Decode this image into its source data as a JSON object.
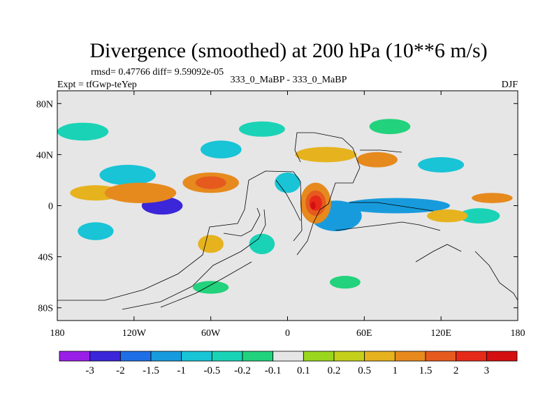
{
  "chart_data": {
    "type": "heatmap",
    "title": "Divergence (smoothed) at 200 hPa (10**6 m/s)",
    "rmsd_label": "rmsd= 0.47766 diff= 9.59092e-05",
    "case_label": "333_0_MaBP - 333_0_MaBP",
    "expt_label": "Expt = tfGwp-teYep",
    "season": "DJF",
    "xlim": [
      -180,
      180
    ],
    "ylim": [
      -90,
      90
    ],
    "x_ticks": [
      {
        "value": -180,
        "label": "180"
      },
      {
        "value": -120,
        "label": "120W"
      },
      {
        "value": -60,
        "label": "60W"
      },
      {
        "value": 0,
        "label": "0"
      },
      {
        "value": 60,
        "label": "60E"
      },
      {
        "value": 120,
        "label": "120E"
      },
      {
        "value": 180,
        "label": "180"
      }
    ],
    "y_ticks": [
      {
        "value": 80,
        "label": "80N"
      },
      {
        "value": 40,
        "label": "40N"
      },
      {
        "value": 0,
        "label": "0"
      },
      {
        "value": -40,
        "label": "40S"
      },
      {
        "value": -80,
        "label": "80S"
      }
    ],
    "contour_levels": [
      "-3",
      "-2",
      "-1.5",
      "-1",
      "-0.5",
      "-0.2",
      "-0.1",
      "0.1",
      "0.2",
      "0.5",
      "1",
      "1.5",
      "2",
      "3"
    ],
    "colorbar_colors": [
      "#9a1fe6",
      "#3b26d9",
      "#1e6fe6",
      "#189bdc",
      "#18c4d6",
      "#1ad3b6",
      "#22d27c",
      "#e6e6e6",
      "#9ad61e",
      "#c4cf1a",
      "#e6b21e",
      "#e68a1e",
      "#e65a1e",
      "#e62a1a",
      "#d40f12"
    ],
    "features": [
      {
        "label": "-2",
        "lon": -98,
        "lat": 0,
        "rx": 16,
        "ry": 7
      },
      {
        "label": "-2",
        "lon": -100,
        "lat": 2,
        "rx": 6,
        "ry": 3
      },
      {
        "label": "-1.5",
        "lon": 38,
        "lat": -12,
        "rx": 10,
        "ry": 6
      },
      {
        "label": "-1.5",
        "lon": 78,
        "lat": 0,
        "rx": 18,
        "ry": 4
      },
      {
        "label": "-1",
        "lon": 85,
        "lat": 0,
        "rx": 42,
        "ry": 6
      },
      {
        "label": "-1",
        "lon": 38,
        "lat": -8,
        "rx": 20,
        "ry": 12
      },
      {
        "label": "-0.5",
        "lon": -125,
        "lat": 24,
        "rx": 22,
        "ry": 8
      },
      {
        "label": "-0.5",
        "lon": -150,
        "lat": -20,
        "rx": 14,
        "ry": 7
      },
      {
        "label": "-0.5",
        "lon": -52,
        "lat": 44,
        "rx": 16,
        "ry": 7
      },
      {
        "label": "-0.5",
        "lon": 120,
        "lat": 32,
        "rx": 18,
        "ry": 6
      },
      {
        "label": "-0.5",
        "lon": 0,
        "lat": 18,
        "rx": 10,
        "ry": 8
      },
      {
        "label": "-0.2",
        "lon": -160,
        "lat": 58,
        "rx": 20,
        "ry": 7
      },
      {
        "label": "-0.2",
        "lon": -20,
        "lat": 60,
        "rx": 18,
        "ry": 6
      },
      {
        "label": "-0.2",
        "lon": 150,
        "lat": -8,
        "rx": 16,
        "ry": 6
      },
      {
        "label": "-0.2",
        "lon": -20,
        "lat": -30,
        "rx": 10,
        "ry": 8
      },
      {
        "label": "-0.1",
        "lon": 80,
        "lat": 62,
        "rx": 16,
        "ry": 6
      },
      {
        "label": "-0.1",
        "lon": -60,
        "lat": -64,
        "rx": 14,
        "ry": 5
      },
      {
        "label": "-0.1",
        "lon": 45,
        "lat": -60,
        "rx": 12,
        "ry": 5
      },
      {
        "label": "0.5",
        "lon": -150,
        "lat": 10,
        "rx": 20,
        "ry": 6
      },
      {
        "label": "0.5",
        "lon": 30,
        "lat": 40,
        "rx": 24,
        "ry": 6
      },
      {
        "label": "0.5",
        "lon": 125,
        "lat": -8,
        "rx": 16,
        "ry": 5
      },
      {
        "label": "0.5",
        "lon": -60,
        "lat": -30,
        "rx": 10,
        "ry": 7
      },
      {
        "label": "1",
        "lon": -115,
        "lat": 10,
        "rx": 28,
        "ry": 8
      },
      {
        "label": "1",
        "lon": -60,
        "lat": 18,
        "rx": 22,
        "ry": 8
      },
      {
        "label": "1",
        "lon": 70,
        "lat": 36,
        "rx": 16,
        "ry": 6
      },
      {
        "label": "1",
        "lon": 160,
        "lat": 6,
        "rx": 16,
        "ry": 4
      },
      {
        "label": "1",
        "lon": 22,
        "lat": 2,
        "rx": 12,
        "ry": 16
      },
      {
        "label": "1.5",
        "lon": -60,
        "lat": 18,
        "rx": 12,
        "ry": 5
      },
      {
        "label": "1.5",
        "lon": 22,
        "lat": 2,
        "rx": 8,
        "ry": 10
      },
      {
        "label": "2",
        "lon": 22,
        "lat": 2,
        "rx": 5,
        "ry": 6
      },
      {
        "label": "3",
        "lon": 20,
        "lat": 0,
        "rx": 2,
        "ry": 3
      }
    ]
  }
}
